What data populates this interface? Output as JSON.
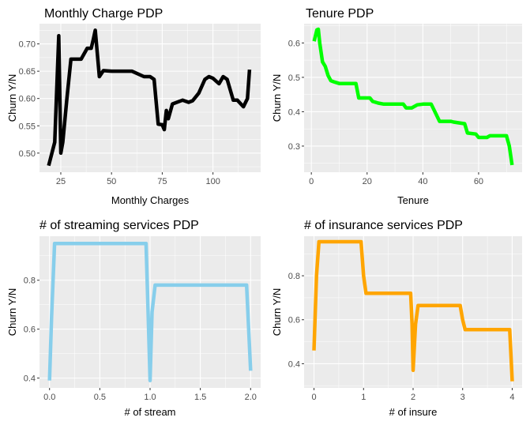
{
  "chart_data": [
    {
      "type": "line",
      "title": "Monthly Charge PDP",
      "xlabel": "Monthly Charges",
      "ylabel": "Churn Y/N",
      "xlim": [
        14.5,
        123.5
      ],
      "ylim": [
        0.465,
        0.737
      ],
      "xticks": [
        25,
        50,
        75,
        100
      ],
      "yticks": [
        0.5,
        0.55,
        0.6,
        0.65,
        0.7
      ],
      "ytick_labels": [
        "0.50",
        "0.55",
        "0.60",
        "0.65",
        "0.70"
      ],
      "xtick_labels": [
        "25",
        "50",
        "75",
        "100"
      ],
      "color": "#000000",
      "x": [
        19,
        22,
        24,
        25,
        26,
        28,
        30,
        35,
        38,
        40,
        41,
        42,
        44,
        46,
        50,
        60,
        66,
        69,
        71,
        73,
        75,
        76,
        77,
        78,
        80,
        85,
        88,
        90,
        93,
        96,
        98,
        100,
        103,
        105,
        107,
        110,
        112,
        115,
        117,
        118
      ],
      "y": [
        0.477,
        0.52,
        0.715,
        0.5,
        0.52,
        0.6,
        0.672,
        0.672,
        0.692,
        0.692,
        0.708,
        0.725,
        0.64,
        0.651,
        0.65,
        0.65,
        0.64,
        0.64,
        0.635,
        0.553,
        0.552,
        0.543,
        0.578,
        0.563,
        0.59,
        0.597,
        0.593,
        0.596,
        0.61,
        0.635,
        0.64,
        0.637,
        0.627,
        0.64,
        0.635,
        0.597,
        0.597,
        0.585,
        0.6,
        0.653
      ]
    },
    {
      "type": "line",
      "title": "Tenure PDP",
      "xlabel": "Tenure",
      "ylabel": "Churn Y/N",
      "xlim": [
        -2.6,
        75.6
      ],
      "ylim": [
        0.224,
        0.656
      ],
      "xticks": [
        0,
        20,
        40,
        60
      ],
      "yticks": [
        0.3,
        0.4,
        0.5,
        0.6
      ],
      "ytick_labels": [
        "0.3",
        "0.4",
        "0.5",
        "0.6"
      ],
      "xtick_labels": [
        "0",
        "20",
        "40",
        "60"
      ],
      "color": "#00ff00",
      "x": [
        1,
        2,
        2.5,
        3,
        4,
        5,
        6,
        7,
        8,
        10,
        16,
        17,
        21,
        22,
        24,
        26,
        33,
        34,
        36,
        38,
        40,
        43,
        44,
        46,
        50,
        51,
        55,
        56,
        59,
        60,
        63,
        64,
        68,
        70,
        71,
        72
      ],
      "y": [
        0.605,
        0.638,
        0.64,
        0.6,
        0.545,
        0.532,
        0.505,
        0.49,
        0.487,
        0.482,
        0.482,
        0.44,
        0.44,
        0.43,
        0.425,
        0.422,
        0.422,
        0.411,
        0.411,
        0.42,
        0.422,
        0.422,
        0.405,
        0.372,
        0.372,
        0.37,
        0.365,
        0.338,
        0.335,
        0.325,
        0.325,
        0.33,
        0.33,
        0.33,
        0.3,
        0.245
      ]
    },
    {
      "type": "line",
      "title": "# of streaming services PDP",
      "xlabel": "# of stream",
      "ylabel": "Churn Y/N",
      "xlim": [
        -0.1,
        2.1
      ],
      "ylim": [
        0.36,
        0.98
      ],
      "xticks": [
        0.0,
        0.5,
        1.0,
        1.5,
        2.0
      ],
      "xtick_labels": [
        "0.0",
        "0.5",
        "1.0",
        "1.5",
        "2.0"
      ],
      "yticks": [
        0.4,
        0.6,
        0.8
      ],
      "ytick_labels": [
        "0.4",
        "0.6",
        "0.8"
      ],
      "color": "#87ceeb",
      "x": [
        0,
        0.02,
        0.05,
        0.5,
        0.96,
        0.98,
        1.0,
        1.02,
        1.05,
        1.5,
        1.96,
        2.0
      ],
      "y": [
        0.39,
        0.65,
        0.95,
        0.95,
        0.95,
        0.67,
        0.39,
        0.67,
        0.78,
        0.78,
        0.78,
        0.43
      ]
    },
    {
      "type": "line",
      "title": "# of insurance services PDP",
      "xlabel": "# of insure",
      "ylabel": "Churn Y/N",
      "xlim": [
        -0.2,
        4.2
      ],
      "ylim": [
        0.29,
        0.98
      ],
      "xticks": [
        0,
        1,
        2,
        3,
        4
      ],
      "xtick_labels": [
        "0",
        "1",
        "2",
        "3",
        "4"
      ],
      "yticks": [
        0.4,
        0.6,
        0.8
      ],
      "ytick_labels": [
        "0.4",
        "0.6",
        "0.8"
      ],
      "color": "#ffa500",
      "x": [
        0,
        0.05,
        0.1,
        0.95,
        1.0,
        1.05,
        1.95,
        1.98,
        2.0,
        2.05,
        2.1,
        2.95,
        3.0,
        3.05,
        3.95,
        4.0
      ],
      "y": [
        0.46,
        0.8,
        0.955,
        0.955,
        0.8,
        0.72,
        0.72,
        0.58,
        0.37,
        0.58,
        0.665,
        0.665,
        0.6,
        0.555,
        0.555,
        0.32
      ]
    }
  ]
}
